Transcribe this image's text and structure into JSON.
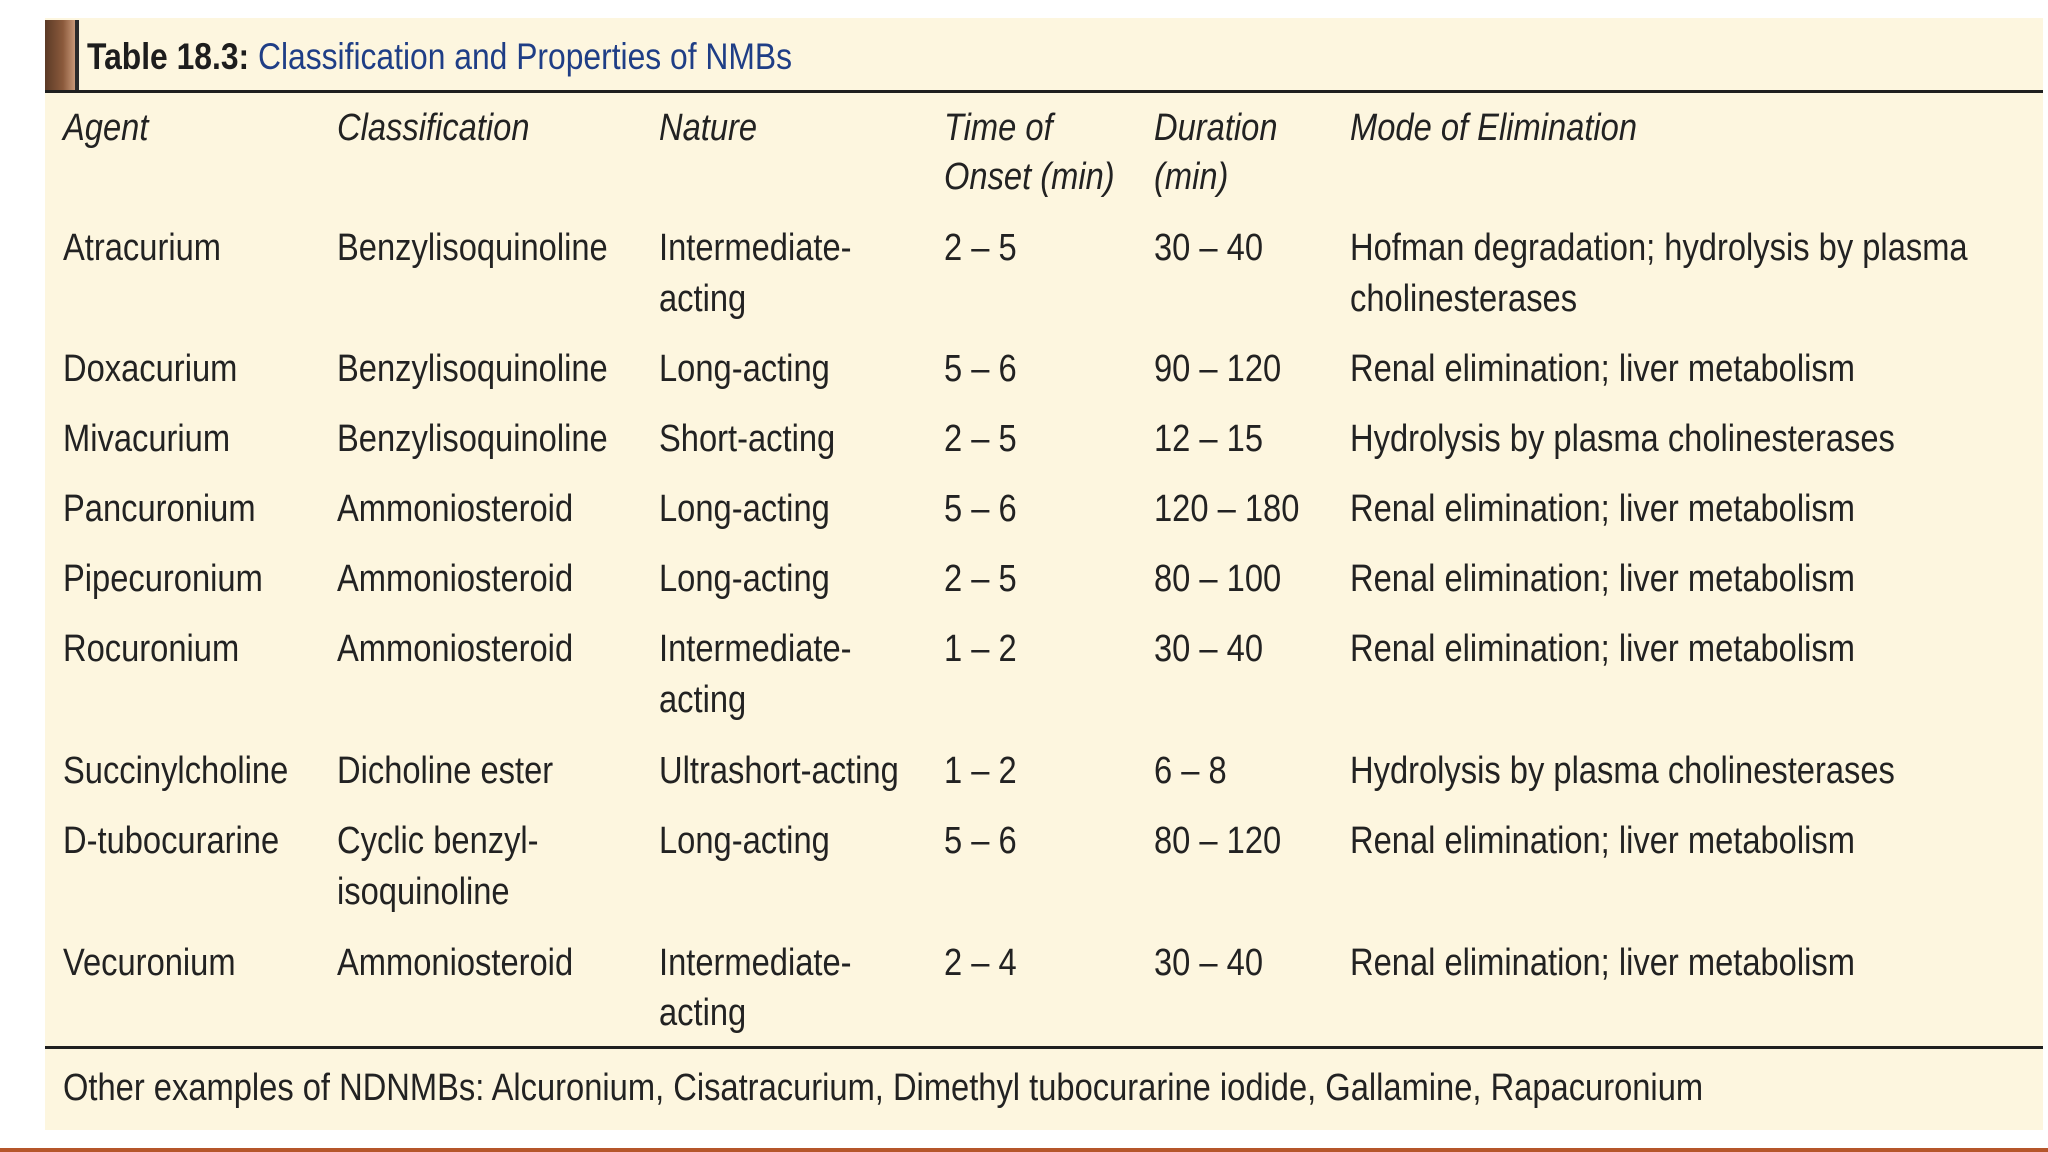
{
  "caption": {
    "number": "Table 18.3:",
    "title": "Classification and Properties of NMBs"
  },
  "headers": {
    "agent": "Agent",
    "classification": "Classification",
    "nature": "Nature",
    "onset_l1": "Time of",
    "onset_l2": "Onset (min)",
    "duration_l1": "Duration",
    "duration_l2": "(min)",
    "elimination": "Mode of Elimination"
  },
  "rows": [
    {
      "agent": "Atracurium",
      "classification": [
        "Benzylisoquinoline"
      ],
      "nature": [
        "Intermediate-",
        "acting"
      ],
      "onset": "2 – 5",
      "duration": "30 – 40",
      "elimination": [
        "Hofman degradation; hydrolysis by plasma",
        "cholinesterases"
      ]
    },
    {
      "agent": "Doxacurium",
      "classification": [
        "Benzylisoquinoline"
      ],
      "nature": [
        "Long-acting"
      ],
      "onset": "5 – 6",
      "duration": "90 – 120",
      "elimination": [
        "Renal elimination; liver metabolism"
      ]
    },
    {
      "agent": "Mivacurium",
      "classification": [
        "Benzylisoquinoline"
      ],
      "nature": [
        "Short-acting"
      ],
      "onset": "2 – 5",
      "duration": "12 – 15",
      "elimination": [
        "Hydrolysis by plasma cholinesterases"
      ]
    },
    {
      "agent": "Pancuronium",
      "classification": [
        "Ammoniosteroid"
      ],
      "nature": [
        "Long-acting"
      ],
      "onset": "5 – 6",
      "duration": "120 – 180",
      "elimination": [
        "Renal elimination; liver metabolism"
      ]
    },
    {
      "agent": "Pipecuronium",
      "classification": [
        "Ammoniosteroid"
      ],
      "nature": [
        "Long-acting"
      ],
      "onset": "2 – 5",
      "duration": "80 – 100",
      "elimination": [
        "Renal elimination; liver metabolism"
      ]
    },
    {
      "agent": "Rocuronium",
      "classification": [
        "Ammoniosteroid"
      ],
      "nature": [
        "Intermediate-",
        "acting"
      ],
      "onset": "1 – 2",
      "duration": "30 – 40",
      "elimination": [
        "Renal elimination; liver metabolism"
      ]
    },
    {
      "agent": "Succinylcholine",
      "classification": [
        "Dicholine ester"
      ],
      "nature": [
        "Ultrashort-acting"
      ],
      "onset": "1 – 2",
      "duration": "6 – 8",
      "elimination": [
        "Hydrolysis by plasma cholinesterases"
      ]
    },
    {
      "agent": "D-tubocurarine",
      "classification": [
        "Cyclic benzyl-",
        "isoquinoline"
      ],
      "nature": [
        "Long-acting"
      ],
      "onset": "5 – 6",
      "duration": "80 – 120",
      "elimination": [
        "Renal elimination; liver metabolism"
      ]
    },
    {
      "agent": "Vecuronium",
      "classification": [
        "Ammoniosteroid"
      ],
      "nature": [
        "Intermediate-",
        "acting"
      ],
      "onset": "2 – 4",
      "duration": "30 – 40",
      "elimination": [
        "Renal elimination; liver metabolism"
      ]
    }
  ],
  "footnote": "Other examples of NDNMBs: Alcuronium, Cisatracurium, Dimethyl tubocurarine iodide, Gallamine, Rapacuronium"
}
